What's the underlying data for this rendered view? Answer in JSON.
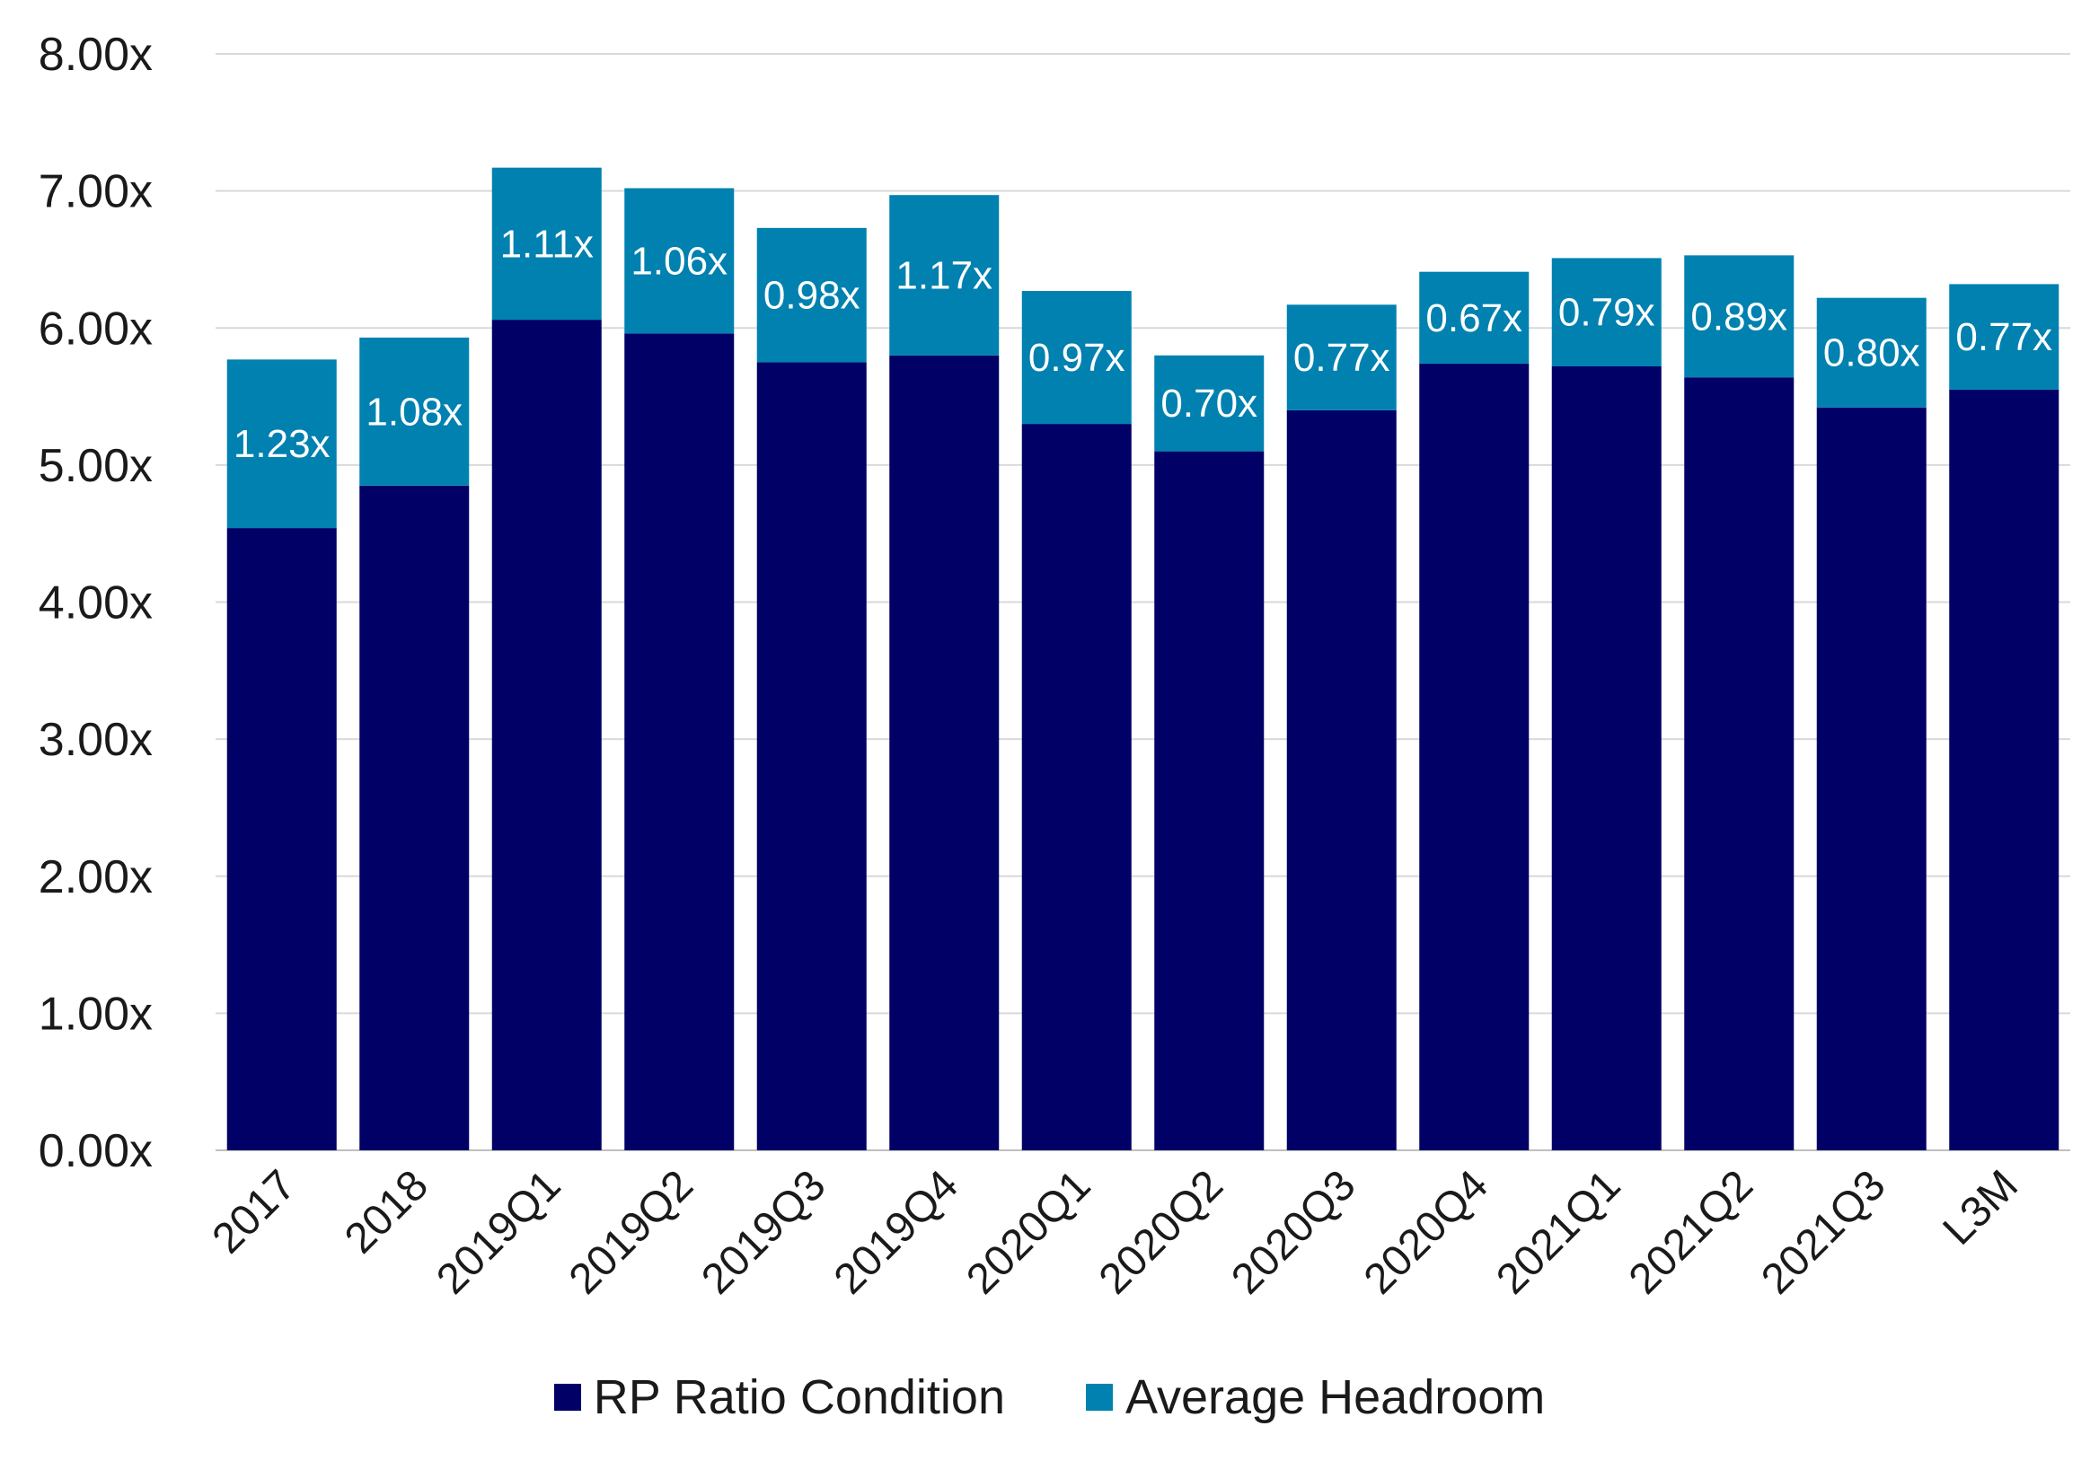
{
  "chart_data": {
    "type": "bar",
    "stacked": true,
    "categories": [
      "2017",
      "2018",
      "2019Q1",
      "2019Q2",
      "2019Q3",
      "2019Q4",
      "2020Q1",
      "2020Q2",
      "2020Q3",
      "2020Q4",
      "2021Q1",
      "2021Q2",
      "2021Q3",
      "L3M"
    ],
    "series": [
      {
        "name": "RP Ratio Condition",
        "color": "#000066",
        "values": [
          4.54,
          4.85,
          6.06,
          5.96,
          5.75,
          5.8,
          5.3,
          5.1,
          5.4,
          5.74,
          5.72,
          5.64,
          5.42,
          5.55
        ]
      },
      {
        "name": "Average Headroom",
        "color": "#0081B0",
        "values": [
          1.23,
          1.08,
          1.11,
          1.06,
          0.98,
          1.17,
          0.97,
          0.7,
          0.77,
          0.67,
          0.79,
          0.89,
          0.8,
          0.77
        ],
        "data_labels": [
          "1.23x",
          "1.08x",
          "1.11x",
          "1.06x",
          "0.98x",
          "1.17x",
          "0.97x",
          "0.70x",
          "0.77x",
          "0.67x",
          "0.79x",
          "0.89x",
          "0.80x",
          "0.77x"
        ]
      }
    ],
    "title": "",
    "xlabel": "",
    "ylabel": "",
    "ylim": [
      0,
      8
    ],
    "y_ticks": [
      0,
      1,
      2,
      3,
      4,
      5,
      6,
      7,
      8
    ],
    "y_tick_labels": [
      "0.00x",
      "1.00x",
      "2.00x",
      "3.00x",
      "4.00x",
      "5.00x",
      "6.00x",
      "7.00x",
      "8.00x"
    ],
    "grid": true,
    "legend_position": "bottom",
    "x_tick_rotation": -45
  }
}
